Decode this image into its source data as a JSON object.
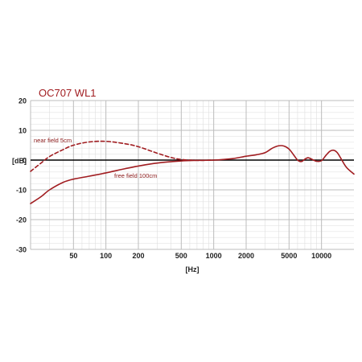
{
  "chart_data": {
    "type": "line",
    "title": "OC707 WL1",
    "xlabel": "[Hz]",
    "ylabel": "[dB]",
    "x_scale": "log",
    "xlim": [
      20,
      20000
    ],
    "ylim": [
      -30,
      20
    ],
    "x_ticks": [
      50,
      100,
      200,
      500,
      1000,
      2000,
      5000,
      10000
    ],
    "y_ticks": [
      20,
      10,
      0,
      -10,
      -20,
      -30
    ],
    "grid": true,
    "colors": {
      "series": "#a11d21",
      "grid": "#bcbcbc",
      "zero_line": "#000000"
    },
    "series": [
      {
        "name": "near field 5cm",
        "style": "dashed",
        "x": [
          20,
          25,
          30,
          40,
          50,
          70,
          100,
          150,
          200,
          300,
          400,
          500,
          700,
          1000
        ],
        "y": [
          -3.8,
          -1,
          1.2,
          3.5,
          5,
          6.1,
          6.3,
          5.5,
          4.5,
          2.3,
          0.9,
          0.2,
          -0.1,
          0
        ]
      },
      {
        "name": "free field 100cm",
        "style": "solid",
        "x": [
          20,
          25,
          30,
          40,
          50,
          70,
          100,
          150,
          200,
          300,
          500,
          700,
          1000,
          1500,
          2000,
          2500,
          3000,
          3500,
          4000,
          4500,
          5000,
          5500,
          6000,
          6500,
          7000,
          7500,
          8000,
          9000,
          10000,
          11000,
          12000,
          13000,
          14000,
          15000,
          17000,
          20000
        ],
        "y": [
          -14.6,
          -12.3,
          -10,
          -7.5,
          -6.4,
          -5.4,
          -4.3,
          -2.9,
          -2,
          -1,
          -0.3,
          -0.1,
          0,
          0.5,
          1.3,
          1.8,
          2.5,
          4,
          4.8,
          4.7,
          3.7,
          1.8,
          0,
          -0.5,
          0.3,
          0.8,
          0.4,
          -0.4,
          -0.2,
          1.6,
          3,
          3.3,
          2.5,
          0.8,
          -2.4,
          -4.7
        ]
      }
    ]
  }
}
